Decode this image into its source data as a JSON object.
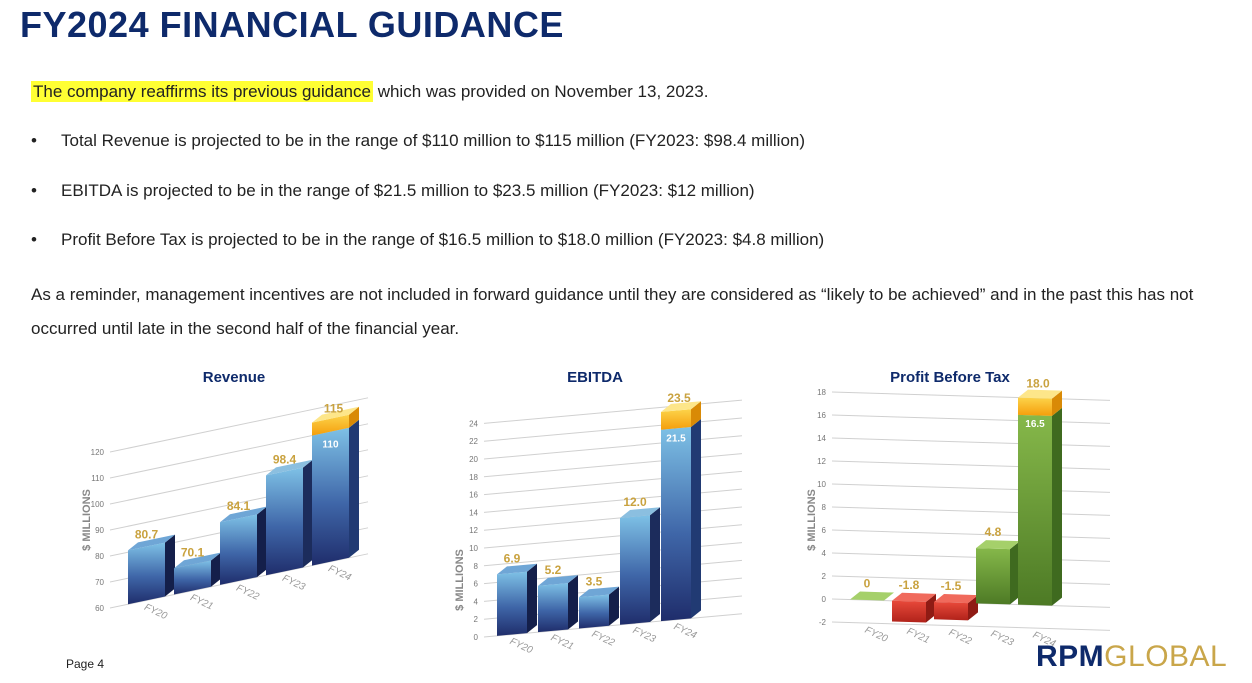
{
  "title": "FY2024 FINANCIAL GUIDANCE",
  "intro": {
    "highlight": "The company reaffirms its previous guidance",
    "rest": " which was provided on November 13, 2023."
  },
  "bullets": [
    "Total Revenue is projected to be in the range of $110 million to $115 million (FY2023: $98.4 million)",
    "EBITDA is projected to be in the range of $21.5 million to $23.5 million (FY2023: $12 million)",
    "Profit Before Tax is projected to be in the range of $16.5 million to $18.0 million (FY2023: $4.8 million)"
  ],
  "bullet_symbol": "•",
  "reminder": "As a reminder, management incentives are not included in forward guidance until they are considered as “likely to be achieved” and in the past this has not occurred until late in the second half of the financial year.",
  "page_label": "Page 4",
  "logo": {
    "part1": "RPM",
    "part2": "GLOBAL"
  },
  "colors": {
    "title": "#0e2a6b",
    "highlight": "#ffff33",
    "value_label": "#c9a23f",
    "range_top": "#fbbf1c",
    "negative": "#d9342a",
    "profit": "#6f9e37"
  },
  "chart_data": [
    {
      "type": "bar",
      "title": "Revenue",
      "ylabel": "$ MILLIONS",
      "categories": [
        "FY20",
        "FY21",
        "FY22",
        "FY23",
        "FY24"
      ],
      "values": [
        80.7,
        70.1,
        84.1,
        98.4,
        110
      ],
      "labels": [
        "80.7",
        "70.1",
        "84.1",
        "98.4",
        "110"
      ],
      "range_top": {
        "index": 4,
        "value": 115,
        "label": "115"
      },
      "ylim": [
        60,
        120
      ],
      "yticks": [
        60,
        70,
        80,
        90,
        100,
        110,
        120
      ]
    },
    {
      "type": "bar",
      "title": "EBITDA",
      "ylabel": "$ MILLIONS",
      "categories": [
        "FY20",
        "FY21",
        "FY22",
        "FY23",
        "FY24"
      ],
      "values": [
        6.9,
        5.2,
        3.5,
        12.0,
        21.5
      ],
      "labels": [
        "6.9",
        "5.2",
        "3.5",
        "12.0",
        "21.5"
      ],
      "range_top": {
        "index": 4,
        "value": 23.5,
        "label": "23.5"
      },
      "ylim": [
        0,
        24
      ],
      "yticks": [
        0,
        2,
        4,
        6,
        8,
        10,
        12,
        14,
        16,
        18,
        20,
        22,
        24
      ]
    },
    {
      "type": "bar",
      "title": "Profit Before Tax",
      "ylabel": "$ MILLIONS",
      "categories": [
        "FY20",
        "FY21",
        "FY22",
        "FY23",
        "FY24"
      ],
      "values": [
        0,
        -1.8,
        -1.5,
        4.8,
        16.5
      ],
      "labels": [
        "0",
        "-1.8",
        "-1.5",
        "4.8",
        "16.5"
      ],
      "range_top": {
        "index": 4,
        "value": 18.0,
        "label": "18.0"
      },
      "ylim": [
        -2,
        18
      ],
      "yticks": [
        -2,
        0,
        2,
        4,
        6,
        8,
        10,
        12,
        14,
        16,
        18
      ]
    }
  ]
}
